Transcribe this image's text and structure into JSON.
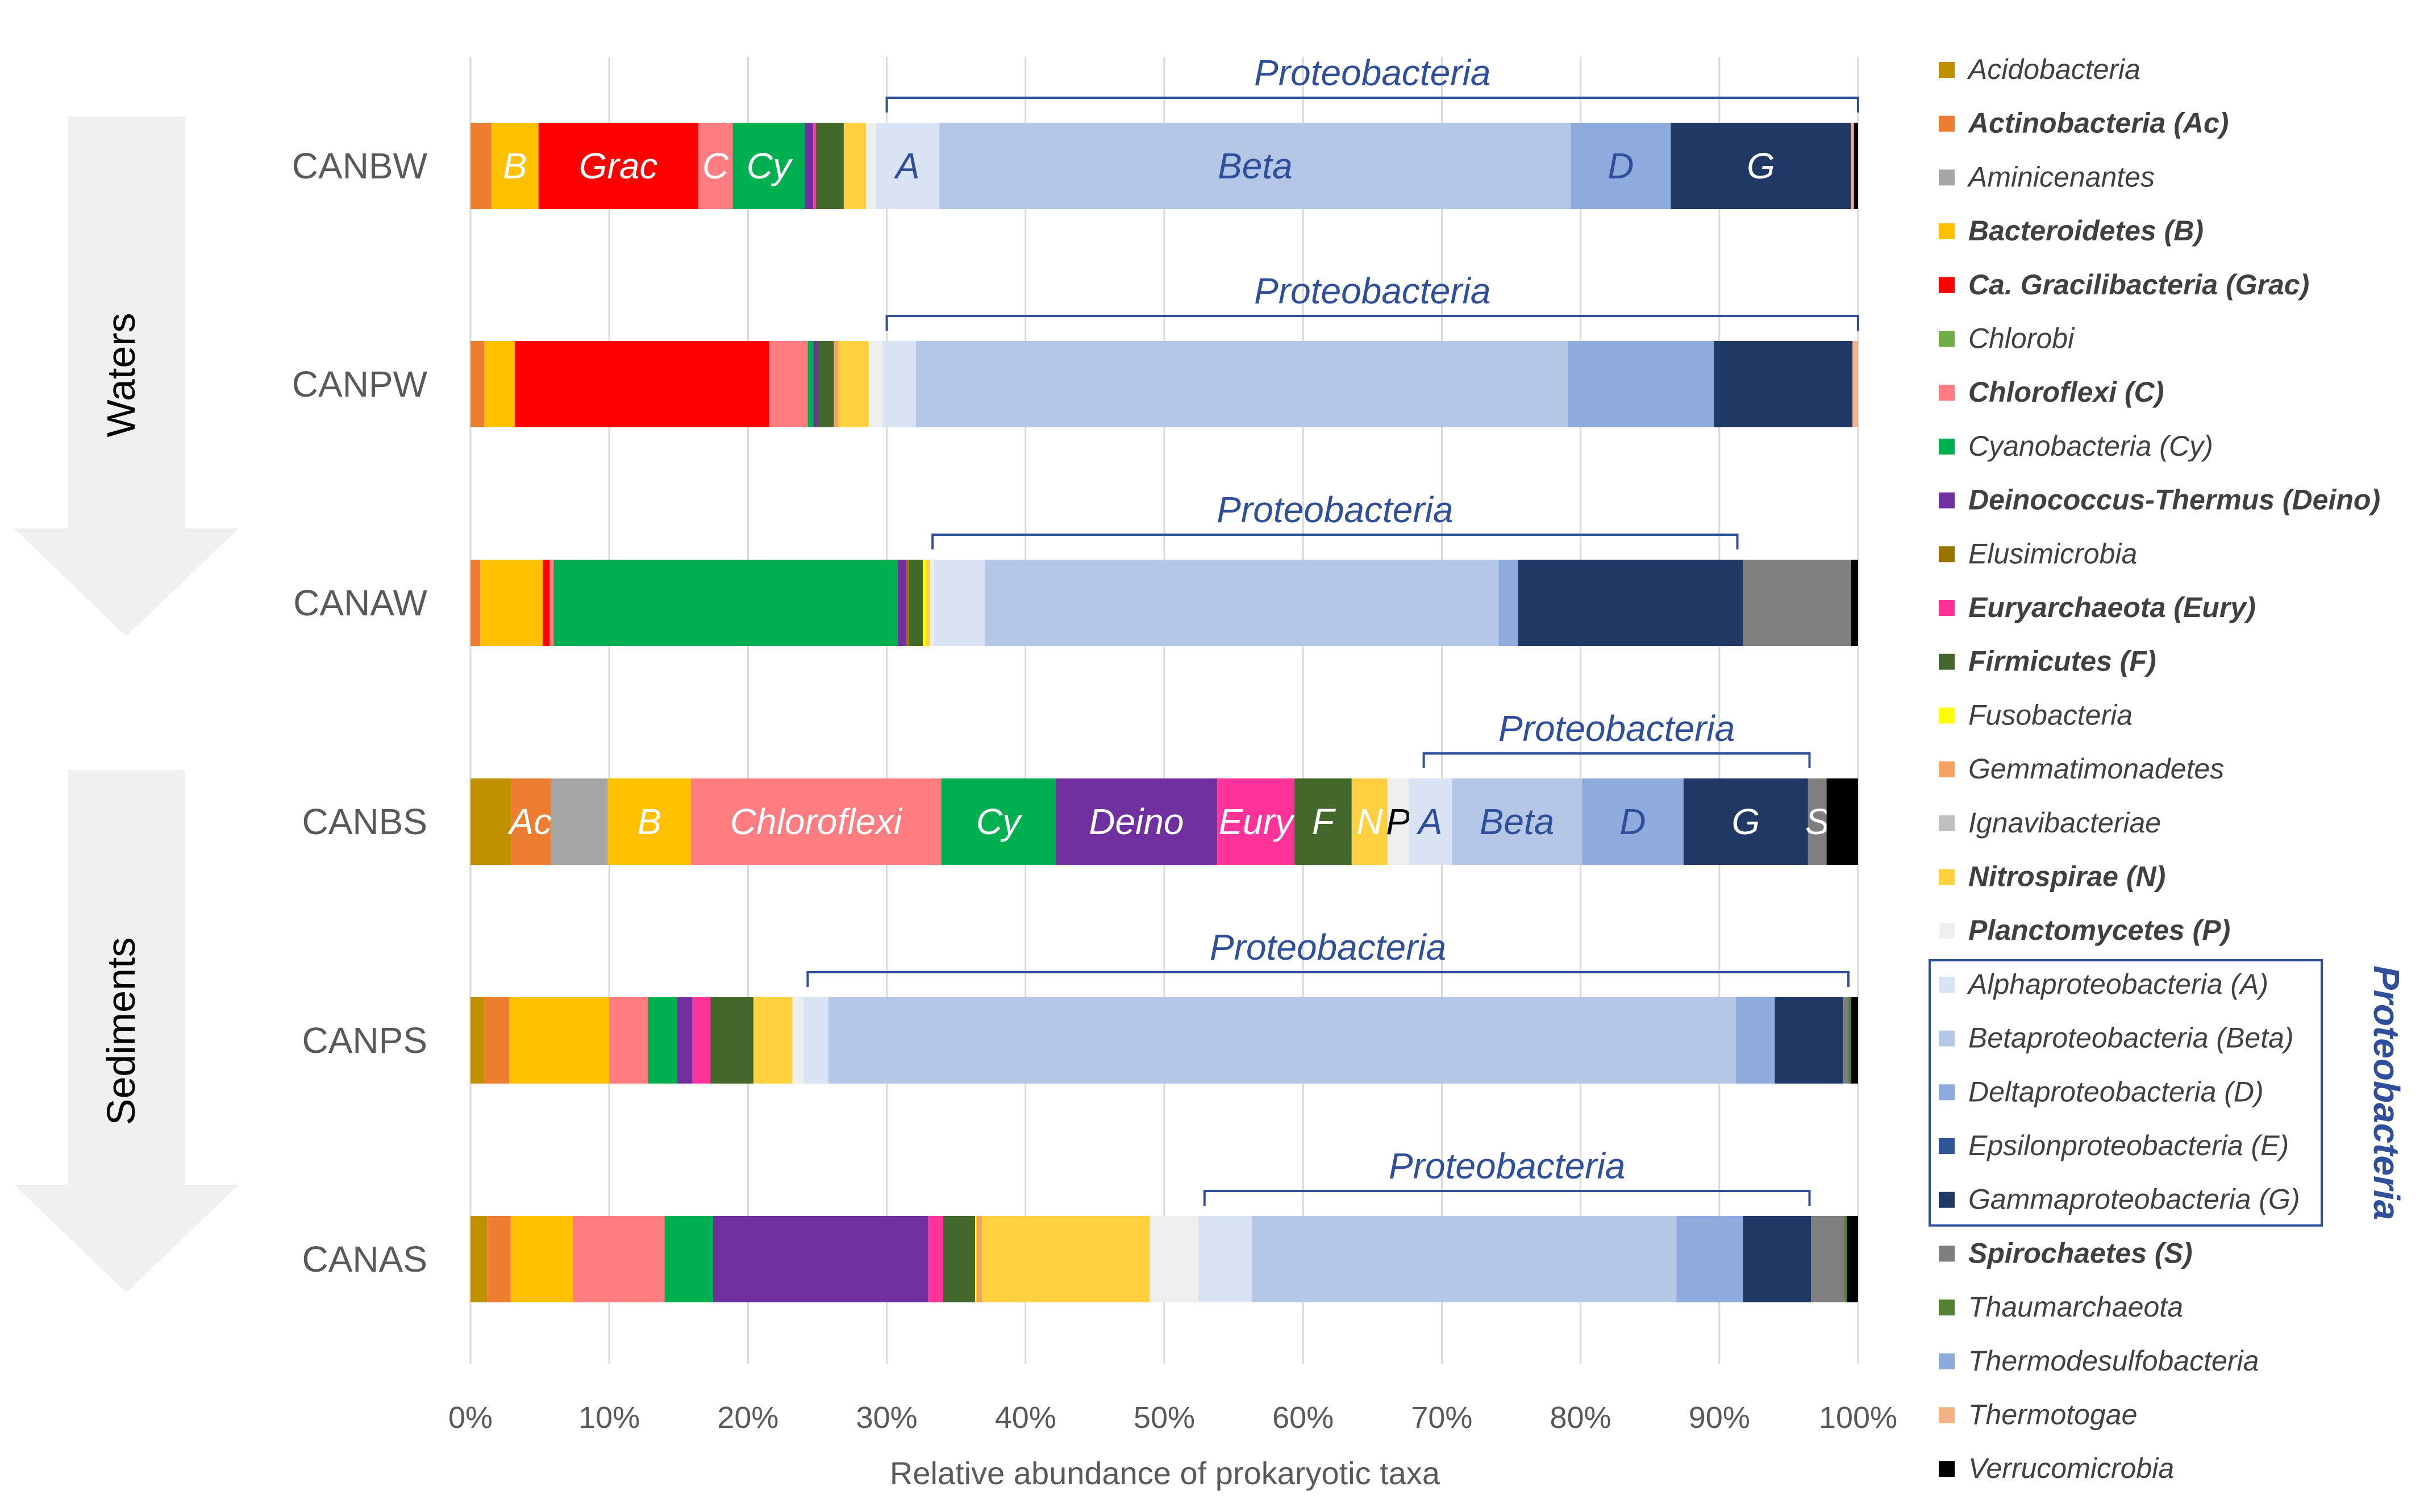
{
  "chart_data": {
    "type": "bar",
    "orientation": "horizontal-stacked-100",
    "xlabel": "Relative abundance of prokaryotic taxa",
    "xticks": [
      "0%",
      "10%",
      "20%",
      "30%",
      "40%",
      "50%",
      "60%",
      "70%",
      "80%",
      "90%",
      "100%"
    ],
    "xlim": [
      0,
      100
    ],
    "groups": [
      {
        "name": "Waters",
        "categories": [
          "CANBW",
          "CANPW",
          "CANAW"
        ]
      },
      {
        "name": "Sediments",
        "categories": [
          "CANBS",
          "CANPS",
          "CANAS"
        ]
      }
    ],
    "categories": [
      "CANBW",
      "CANPW",
      "CANAW",
      "CANBS",
      "CANPS",
      "CANAS"
    ],
    "taxa": [
      {
        "name": "Acidobacteria",
        "color": "#bf9000",
        "bold": false
      },
      {
        "name": "Actinobacteria (Ac)",
        "color": "#ed7d31",
        "bold": true
      },
      {
        "name": "Aminicenantes",
        "color": "#a5a5a5",
        "bold": false
      },
      {
        "name": "Bacteroidetes (B)",
        "color": "#ffc000",
        "bold": true
      },
      {
        "name": "Ca. Gracilibacteria (Grac)",
        "color": "#ff0000",
        "bold": true
      },
      {
        "name": "Chlorobi",
        "color": "#70ad47",
        "bold": false
      },
      {
        "name": "Chloroflexi (C)",
        "color": "#ff7c80",
        "bold": true
      },
      {
        "name": "Cyanobacteria (Cy)",
        "color": "#00b050",
        "bold": false
      },
      {
        "name": "Deinococcus-Thermus (Deino)",
        "color": "#7030a0",
        "bold": true
      },
      {
        "name": "Elusimicrobia",
        "color": "#997300",
        "bold": false
      },
      {
        "name": "Euryarchaeota (Eury)",
        "color": "#ff3399",
        "bold": true
      },
      {
        "name": "Firmicutes (F)",
        "color": "#43682b",
        "bold": true
      },
      {
        "name": "Fusobacteria",
        "color": "#ffff00",
        "bold": false
      },
      {
        "name": "Gemmatimonadetes",
        "color": "#f4a460",
        "bold": false
      },
      {
        "name": "Ignavibacteriae",
        "color": "#bfbfbf",
        "bold": false
      },
      {
        "name": "Nitrospirae (N)",
        "color": "#ffd040",
        "bold": true
      },
      {
        "name": "Planctomycetes (P)",
        "color": "#efefef",
        "bold": true
      },
      {
        "name": "Alphaproteobacteria (A)",
        "color": "#dae3f3",
        "bold": false
      },
      {
        "name": "Betaproteobacteria (Beta)",
        "color": "#b4c7e7",
        "bold": false
      },
      {
        "name": "Deltaproteobacteria (D)",
        "color": "#8faadc",
        "bold": false
      },
      {
        "name": "Epsilonproteobacteria (E)",
        "color": "#2f5597",
        "bold": false
      },
      {
        "name": "Gammaproteobacteria (G)",
        "color": "#1f3864",
        "bold": false
      },
      {
        "name": "Spirochaetes (S)",
        "color": "#7f7f7f",
        "bold": true
      },
      {
        "name": "Thaumarchaeota",
        "color": "#548235",
        "bold": false
      },
      {
        "name": "Thermodesulfobacteria",
        "color": "#8eaadb",
        "bold": false
      },
      {
        "name": "Thermotogae",
        "color": "#f4b183",
        "bold": false
      },
      {
        "name": "Verrucomicrobia",
        "color": "#000000",
        "bold": false
      }
    ],
    "proteobacteria_group": {
      "label": "Proteobacteria",
      "members": [
        "Alphaproteobacteria (A)",
        "Betaproteobacteria (Beta)",
        "Deltaproteobacteria (D)",
        "Epsilonproteobacteria (E)",
        "Gammaproteobacteria (G)"
      ]
    },
    "series": [
      {
        "name": "CANBW",
        "segments": [
          {
            "taxon": "Actinobacteria (Ac)",
            "value": 1.5
          },
          {
            "taxon": "Bacteroidetes (B)",
            "value": 3.4,
            "label": "B",
            "label_color": "#ffffff"
          },
          {
            "taxon": "Ca. Gracilibacteria (Grac)",
            "value": 11.5,
            "label": "Grac",
            "label_color": "#ffffff"
          },
          {
            "taxon": "Chloroflexi (C)",
            "value": 2.5,
            "label": "C",
            "label_color": "#ffffff"
          },
          {
            "taxon": "Cyanobacteria (Cy)",
            "value": 5.2,
            "label": "Cy",
            "label_color": "#ffffff"
          },
          {
            "taxon": "Deinococcus-Thermus (Deino)",
            "value": 0.6
          },
          {
            "taxon": "Euryarchaeota (Eury)",
            "value": 0.2
          },
          {
            "taxon": "Firmicutes (F)",
            "value": 2.0
          },
          {
            "taxon": "Nitrospirae (N)",
            "value": 1.6
          },
          {
            "taxon": "Planctomycetes (P)",
            "value": 0.7
          },
          {
            "taxon": "Alphaproteobacteria (A)",
            "value": 4.6,
            "label": "A",
            "label_color": "#2f4f9a"
          },
          {
            "taxon": "Betaproteobacteria (Beta)",
            "value": 45.5,
            "label": "Beta",
            "label_color": "#2f4f9a"
          },
          {
            "taxon": "Deltaproteobacteria (D)",
            "value": 7.2,
            "label": "D",
            "label_color": "#2f4f9a"
          },
          {
            "taxon": "Gammaproteobacteria (G)",
            "value": 13.0,
            "label": "G",
            "label_color": "#ffffff"
          },
          {
            "taxon": "Thermotogae",
            "value": 0.2
          },
          {
            "taxon": "Verrucomicrobia",
            "value": 0.3
          }
        ],
        "proteobacteria_range": [
          30,
          100
        ]
      },
      {
        "name": "CANPW",
        "segments": [
          {
            "taxon": "Actinobacteria (Ac)",
            "value": 1.0
          },
          {
            "taxon": "Bacteroidetes (B)",
            "value": 2.2
          },
          {
            "taxon": "Ca. Gracilibacteria (Grac)",
            "value": 18.3
          },
          {
            "taxon": "Chloroflexi (C)",
            "value": 2.8
          },
          {
            "taxon": "Cyanobacteria (Cy)",
            "value": 0.4
          },
          {
            "taxon": "Deinococcus-Thermus (Deino)",
            "value": 0.3
          },
          {
            "taxon": "Firmicutes (F)",
            "value": 1.2
          },
          {
            "taxon": "Gemmatimonadetes",
            "value": 0.3
          },
          {
            "taxon": "Nitrospirae (N)",
            "value": 2.2
          },
          {
            "taxon": "Planctomycetes (P)",
            "value": 1.0
          },
          {
            "taxon": "Alphaproteobacteria (A)",
            "value": 2.4
          },
          {
            "taxon": "Betaproteobacteria (Beta)",
            "value": 47.0
          },
          {
            "taxon": "Deltaproteobacteria (D)",
            "value": 10.5
          },
          {
            "taxon": "Gammaproteobacteria (G)",
            "value": 10.0
          },
          {
            "taxon": "Thermotogae",
            "value": 0.4
          }
        ],
        "proteobacteria_range": [
          30,
          100
        ]
      },
      {
        "name": "CANAW",
        "segments": [
          {
            "taxon": "Actinobacteria (Ac)",
            "value": 0.7
          },
          {
            "taxon": "Bacteroidetes (B)",
            "value": 4.5
          },
          {
            "taxon": "Ca. Gracilibacteria (Grac)",
            "value": 0.5
          },
          {
            "taxon": "Chloroflexi (C)",
            "value": 0.3
          },
          {
            "taxon": "Cyanobacteria (Cy)",
            "value": 24.8
          },
          {
            "taxon": "Deinococcus-Thermus (Deino)",
            "value": 0.6
          },
          {
            "taxon": "Elusimicrobia",
            "value": 0.2
          },
          {
            "taxon": "Firmicutes (F)",
            "value": 1.0
          },
          {
            "taxon": "Fusobacteria",
            "value": 0.2
          },
          {
            "taxon": "Nitrospirae (N)",
            "value": 0.3
          },
          {
            "taxon": "Planctomycetes (P)",
            "value": 0.3
          },
          {
            "taxon": "Alphaproteobacteria (A)",
            "value": 3.7
          },
          {
            "taxon": "Betaproteobacteria (Beta)",
            "value": 37.0
          },
          {
            "taxon": "Deltaproteobacteria (D)",
            "value": 1.4
          },
          {
            "taxon": "Gammaproteobacteria (G)",
            "value": 16.2
          },
          {
            "taxon": "Spirochaetes (S)",
            "value": 7.8
          },
          {
            "taxon": "Verrucomicrobia",
            "value": 0.5
          }
        ],
        "proteobacteria_range": [
          33.3,
          91.3
        ]
      },
      {
        "name": "CANBS",
        "segments": [
          {
            "taxon": "Acidobacteria",
            "value": 2.8
          },
          {
            "taxon": "Actinobacteria (Ac)",
            "value": 2.8,
            "label": "Ac",
            "label_color": "#ffffff"
          },
          {
            "taxon": "Aminicenantes",
            "value": 4.0
          },
          {
            "taxon": "Bacteroidetes (B)",
            "value": 5.8,
            "label": "B",
            "label_color": "#ffffff"
          },
          {
            "taxon": "Chloroflexi (C)",
            "value": 17.5,
            "label": "Chloroflexi",
            "label_color": "#ffffff"
          },
          {
            "taxon": "Cyanobacteria (Cy)",
            "value": 8.0,
            "label": "Cy",
            "label_color": "#ffffff"
          },
          {
            "taxon": "Deinococcus-Thermus (Deino)",
            "value": 11.3,
            "label": "Deino",
            "label_color": "#ffffff"
          },
          {
            "taxon": "Euryarchaeota (Eury)",
            "value": 5.4,
            "label": "Eury",
            "label_color": "#ffffff"
          },
          {
            "taxon": "Firmicutes (F)",
            "value": 4.0,
            "label": "F",
            "label_color": "#ffffff"
          },
          {
            "taxon": "Nitrospirae (N)",
            "value": 2.5,
            "label": "N",
            "label_color": "#ffffff"
          },
          {
            "taxon": "Planctomycetes (P)",
            "value": 1.5,
            "label": "P",
            "label_color": "#000000"
          },
          {
            "taxon": "Alphaproteobacteria (A)",
            "value": 3.0,
            "label": "A",
            "label_color": "#2f4f9a"
          },
          {
            "taxon": "Betaproteobacteria (Beta)",
            "value": 9.1,
            "label": "Beta",
            "label_color": "#2f4f9a"
          },
          {
            "taxon": "Deltaproteobacteria (D)",
            "value": 7.1,
            "label": "D",
            "label_color": "#2f4f9a"
          },
          {
            "taxon": "Gammaproteobacteria (G)",
            "value": 8.7,
            "label": "G",
            "label_color": "#ffffff"
          },
          {
            "taxon": "Spirochaetes (S)",
            "value": 1.3,
            "label": "S",
            "label_color": "#ffffff"
          },
          {
            "taxon": "Verrucomicrobia",
            "value": 2.2
          }
        ],
        "proteobacteria_range": [
          68.7,
          96.5
        ]
      },
      {
        "name": "CANPS",
        "segments": [
          {
            "taxon": "Acidobacteria",
            "value": 1.0
          },
          {
            "taxon": "Actinobacteria (Ac)",
            "value": 1.8
          },
          {
            "taxon": "Bacteroidetes (B)",
            "value": 7.2
          },
          {
            "taxon": "Chloroflexi (C)",
            "value": 2.8
          },
          {
            "taxon": "Cyanobacteria (Cy)",
            "value": 2.1
          },
          {
            "taxon": "Deinococcus-Thermus (Deino)",
            "value": 1.1
          },
          {
            "taxon": "Euryarchaeota (Eury)",
            "value": 1.3
          },
          {
            "taxon": "Firmicutes (F)",
            "value": 3.1
          },
          {
            "taxon": "Nitrospirae (N)",
            "value": 2.8
          },
          {
            "taxon": "Planctomycetes (P)",
            "value": 0.8
          },
          {
            "taxon": "Alphaproteobacteria (A)",
            "value": 1.8
          },
          {
            "taxon": "Betaproteobacteria (Beta)",
            "value": 65.4
          },
          {
            "taxon": "Deltaproteobacteria (D)",
            "value": 2.8
          },
          {
            "taxon": "Gammaproteobacteria (G)",
            "value": 4.9
          },
          {
            "taxon": "Spirochaetes (S)",
            "value": 0.4
          },
          {
            "taxon": "Thaumarchaeota",
            "value": 0.2
          },
          {
            "taxon": "Verrucomicrobia",
            "value": 0.5
          }
        ],
        "proteobacteria_range": [
          24.3,
          99.3
        ]
      },
      {
        "name": "CANAS",
        "segments": [
          {
            "taxon": "Acidobacteria",
            "value": 1.2
          },
          {
            "taxon": "Actinobacteria (Ac)",
            "value": 1.7
          },
          {
            "taxon": "Bacteroidetes (B)",
            "value": 4.5
          },
          {
            "taxon": "Chloroflexi (C)",
            "value": 6.6
          },
          {
            "taxon": "Cyanobacteria (Cy)",
            "value": 3.5
          },
          {
            "taxon": "Deinococcus-Thermus (Deino)",
            "value": 15.5
          },
          {
            "taxon": "Euryarchaeota (Eury)",
            "value": 1.1
          },
          {
            "taxon": "Firmicutes (F)",
            "value": 2.3
          },
          {
            "taxon": "Fusobacteria",
            "value": 0.1
          },
          {
            "taxon": "Gemmatimonadetes",
            "value": 0.4
          },
          {
            "taxon": "Nitrospirae (N)",
            "value": 12.1
          },
          {
            "taxon": "Planctomycetes (P)",
            "value": 3.5
          },
          {
            "taxon": "Alphaproteobacteria (A)",
            "value": 3.9
          },
          {
            "taxon": "Betaproteobacteria (Beta)",
            "value": 30.6
          },
          {
            "taxon": "Deltaproteobacteria (D)",
            "value": 4.8
          },
          {
            "taxon": "Gammaproteobacteria (G)",
            "value": 4.9
          },
          {
            "taxon": "Spirochaetes (S)",
            "value": 2.4
          },
          {
            "taxon": "Thaumarchaeota",
            "value": 0.2
          },
          {
            "taxon": "Verrucomicrobia",
            "value": 0.8
          }
        ],
        "proteobacteria_range": [
          52.9,
          96.5
        ]
      }
    ]
  }
}
